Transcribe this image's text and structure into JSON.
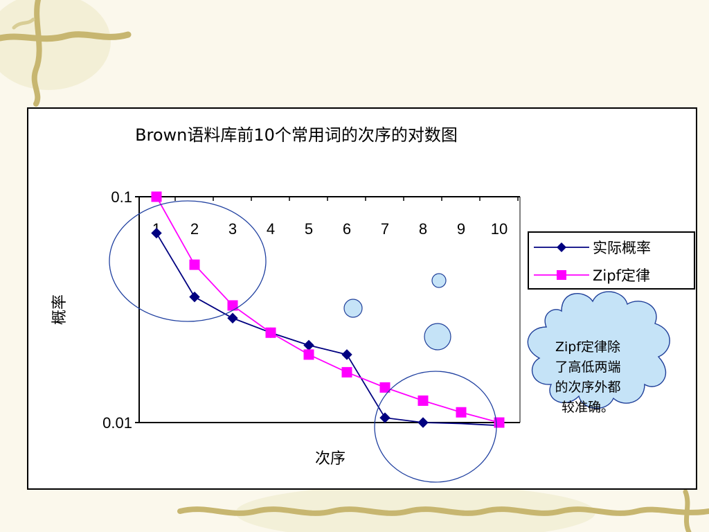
{
  "chart_data": {
    "type": "line",
    "title": "Brown语料库前10个常用词的次序的对数图",
    "xlabel": "次序",
    "ylabel": "概率",
    "x": [
      1,
      2,
      3,
      4,
      5,
      6,
      7,
      8,
      9,
      10
    ],
    "x_tick_labels": [
      "1",
      "2",
      "3",
      "4",
      "5",
      "6",
      "7",
      "8",
      "9",
      "10"
    ],
    "y_scale": "log",
    "ylim": [
      0.01,
      0.1
    ],
    "y_tick_labels": [
      "0.1",
      "0.01"
    ],
    "series": [
      {
        "name": "实际概率",
        "color": "#000080",
        "marker": "diamond",
        "values": [
          0.069,
          0.036,
          0.029,
          0.025,
          0.022,
          0.02,
          0.0105,
          0.01,
          0.0099,
          0.0097
        ]
      },
      {
        "name": "Zipf定律",
        "color": "#ff00ff",
        "marker": "square",
        "values": [
          0.1,
          0.05,
          0.033,
          0.025,
          0.02,
          0.0167,
          0.0143,
          0.0125,
          0.0111,
          0.01
        ]
      }
    ],
    "legend_position": "right",
    "grid": false,
    "annotation": {
      "lines": [
        "Zipf定律除",
        "了高低两端",
        "的次序外都",
        "较准确。"
      ],
      "fill": "#c5e3f7",
      "stroke": "#1f3f99"
    }
  }
}
